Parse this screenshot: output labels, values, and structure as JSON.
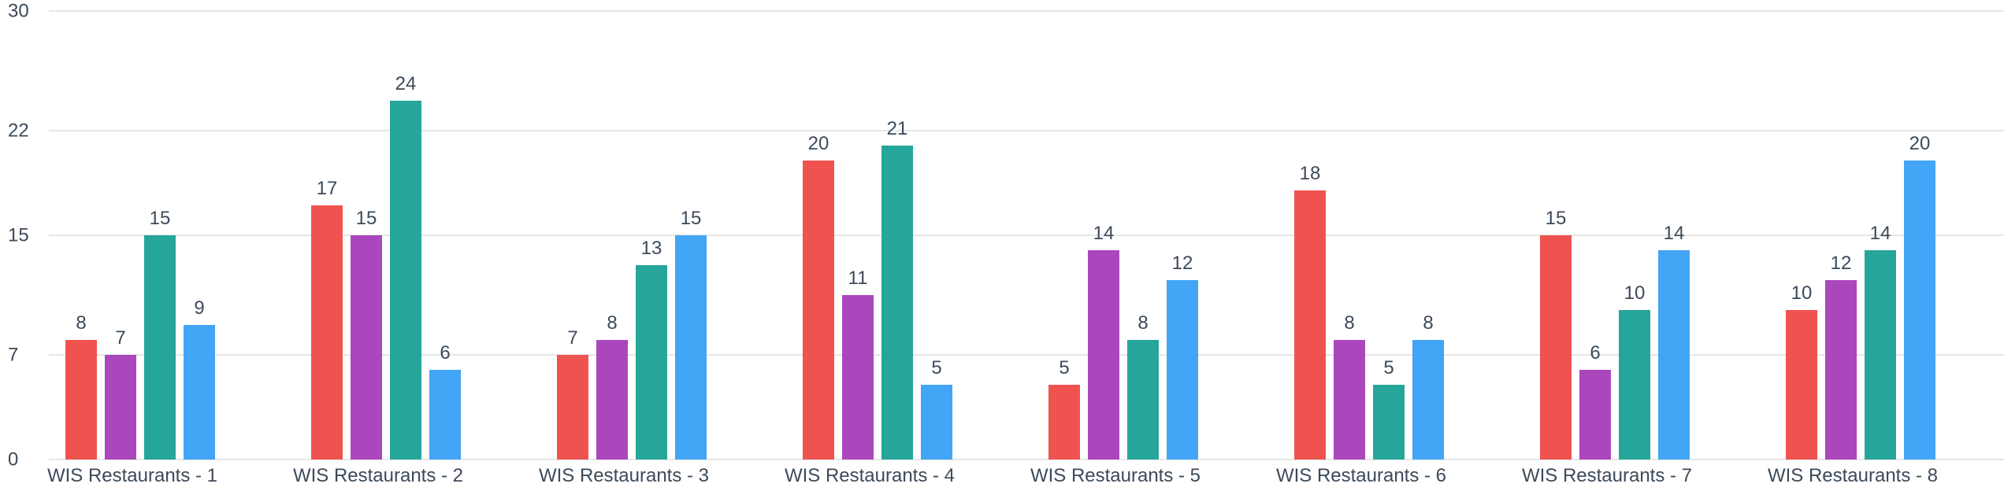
{
  "chart_data": {
    "type": "bar",
    "categories": [
      "WIS Restaurants - 1",
      "WIS Restaurants - 2",
      "WIS Restaurants - 3",
      "WIS Restaurants - 4",
      "WIS Restaurants - 5",
      "WIS Restaurants - 6",
      "WIS Restaurants - 7",
      "WIS Restaurants - 8"
    ],
    "series": [
      {
        "color": "#ef5350",
        "values": [
          8,
          17,
          7,
          20,
          5,
          18,
          15,
          10
        ]
      },
      {
        "color": "#ab47bc",
        "values": [
          7,
          15,
          8,
          11,
          14,
          8,
          6,
          12
        ]
      },
      {
        "color": "#26a69a",
        "values": [
          15,
          24,
          13,
          21,
          8,
          5,
          10,
          14
        ]
      },
      {
        "color": "#42a5f5",
        "values": [
          9,
          6,
          15,
          5,
          12,
          8,
          14,
          20
        ]
      }
    ],
    "y_ticks": [
      0,
      7,
      15,
      22,
      30
    ],
    "y_tick_labels": [
      "0",
      "7",
      "15",
      "22",
      "30"
    ],
    "ylim": [
      0,
      30
    ],
    "grid": true,
    "legend": "none",
    "title": "",
    "xlabel": "",
    "ylabel": ""
  }
}
